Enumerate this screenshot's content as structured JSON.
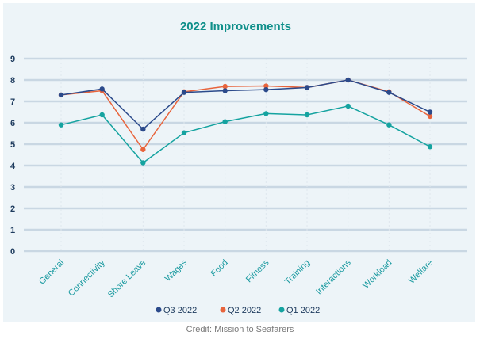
{
  "chart_data": {
    "type": "line",
    "title": "2022 Improvements",
    "categories": [
      "General",
      "Connectivity",
      "Shore Leave",
      "Wages",
      "Food",
      "Fitness",
      "Training",
      "Interactions",
      "Workload",
      "Welfare"
    ],
    "ylim": [
      0,
      9
    ],
    "yticks": [
      0,
      1,
      2,
      3,
      4,
      5,
      6,
      7,
      8,
      9
    ],
    "grid": true,
    "legend_position": "bottom",
    "series": [
      {
        "name": "Q3 2022",
        "color": "#2b4a8b",
        "values": [
          7.3,
          7.58,
          5.7,
          7.42,
          7.5,
          7.55,
          7.65,
          8.0,
          7.42,
          6.5
        ]
      },
      {
        "name": "Q2 2022",
        "color": "#e8643c",
        "values": [
          7.3,
          7.5,
          4.75,
          7.45,
          7.7,
          7.72,
          7.65,
          8.0,
          7.45,
          6.3
        ]
      },
      {
        "name": "Q1 2022",
        "color": "#15a3a0",
        "values": [
          5.9,
          6.37,
          4.13,
          5.53,
          6.05,
          6.43,
          6.37,
          6.78,
          5.9,
          4.88
        ]
      }
    ]
  },
  "colors": {
    "title": "#0f8f8a",
    "axis_text": "#1e3b5e",
    "category_text": "#1a9aa0",
    "grid": "#c9d7e3",
    "background": "#edf4f8"
  },
  "credit": "Credit: Mission to Seafarers"
}
